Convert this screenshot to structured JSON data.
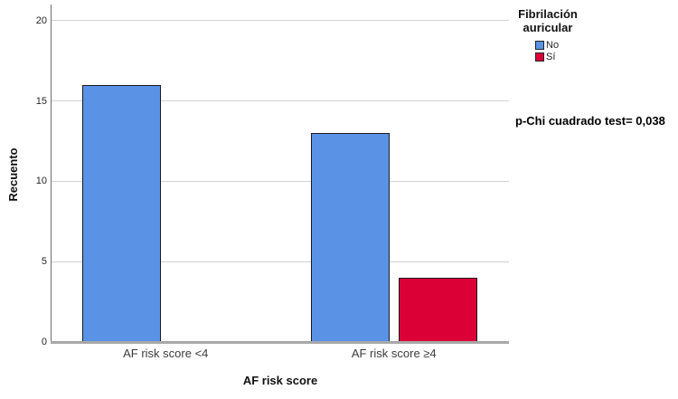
{
  "chart_data": {
    "type": "bar",
    "title": "",
    "xlabel": "AF risk score",
    "ylabel": "Recuento",
    "categories": [
      "AF risk score <4",
      "AF risk score ≥4"
    ],
    "series": [
      {
        "name": "No",
        "color": "#5A92E5",
        "values": [
          16,
          13
        ]
      },
      {
        "name": "Sí",
        "color": "#DB0036",
        "values": [
          0,
          4
        ]
      }
    ],
    "ylim": [
      0,
      21
    ],
    "yticks": [
      0,
      5,
      10,
      15,
      20
    ],
    "grid": true,
    "legend_title": "Fibrilación auricular",
    "legend_position": "top-right",
    "annotation": "p-Chi cuadrado test= 0,038"
  },
  "colors": {
    "bar_no": "#5A92E5",
    "bar_si": "#DB0036",
    "bar_border": "#1A1A1A",
    "gridline": "#D2D2D2",
    "x_axis_line": "#A8A8A8",
    "y_axis_line": "#6E6E6E",
    "background": "#FFFFFF"
  }
}
